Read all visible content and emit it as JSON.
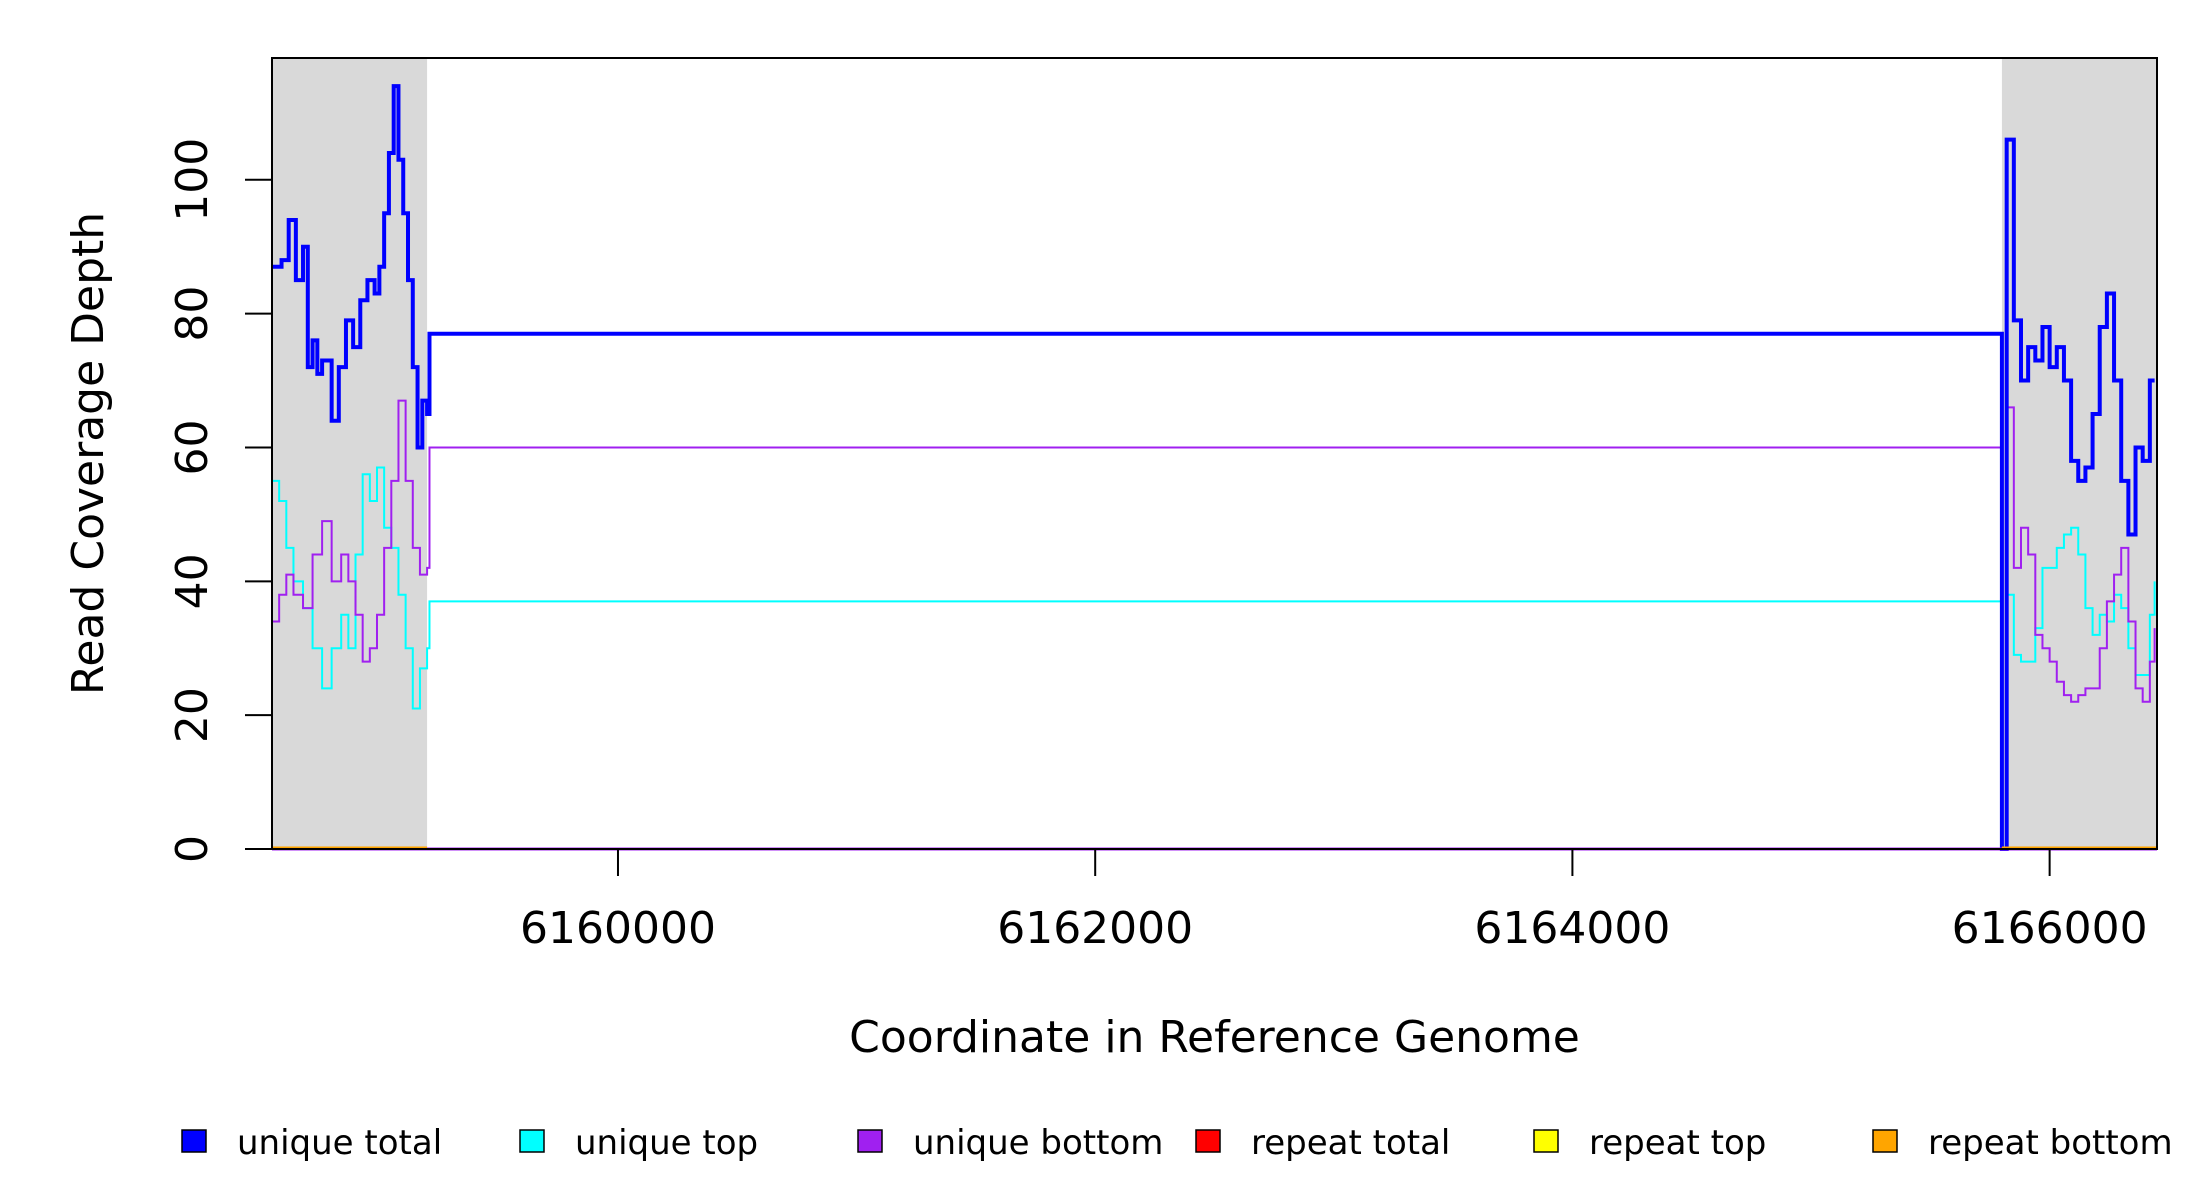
{
  "chart_data": {
    "type": "line",
    "xlabel": "Coordinate in Reference Genome",
    "ylabel": "Read Coverage Depth",
    "xlim": [
      6158550,
      6166450
    ],
    "ylim": [
      0,
      120
    ],
    "x_ticks": [
      6160000,
      6162000,
      6164000,
      6166000
    ],
    "y_ticks": [
      0,
      20,
      40,
      60,
      80,
      100
    ],
    "grid": false,
    "legend_position": "bottom",
    "shaded_regions": [
      {
        "x": [
          6158550,
          6159200
        ],
        "color": "#d9d9d9"
      },
      {
        "x": [
          6165800,
          6166450
        ],
        "color": "#d9d9d9"
      }
    ],
    "series": [
      {
        "name": "unique total",
        "color": "#0000ff",
        "x": [
          6158550,
          6158590,
          6158620,
          6158650,
          6158680,
          6158700,
          6158720,
          6158740,
          6158760,
          6158800,
          6158830,
          6158860,
          6158890,
          6158920,
          6158950,
          6158980,
          6159000,
          6159020,
          6159040,
          6159060,
          6159080,
          6159100,
          6159120,
          6159140,
          6159160,
          6159180,
          6159200,
          6159210,
          6165800,
          6165820,
          6165850,
          6165880,
          6165910,
          6165940,
          6165970,
          6166000,
          6166030,
          6166060,
          6166090,
          6166120,
          6166150,
          6166180,
          6166210,
          6166240,
          6166270,
          6166300,
          6166330,
          6166360,
          6166390,
          6166420,
          6166440
        ],
        "y": [
          87,
          88,
          94,
          85,
          90,
          72,
          76,
          71,
          73,
          64,
          72,
          79,
          75,
          82,
          85,
          83,
          87,
          95,
          104,
          114,
          103,
          95,
          85,
          72,
          60,
          67,
          65,
          77,
          0,
          106,
          79,
          70,
          75,
          73,
          78,
          72,
          75,
          70,
          58,
          55,
          57,
          65,
          78,
          83,
          70,
          55,
          47,
          60,
          58,
          70,
          70
        ],
        "extra": {
          "drop_to": [
            [
              6159210,
              0
            ],
            [
              6165800,
              0
            ]
          ]
        }
      },
      {
        "name": "unique top",
        "color": "#00ffff",
        "x": [
          6158550,
          6158580,
          6158610,
          6158640,
          6158680,
          6158720,
          6158760,
          6158800,
          6158840,
          6158870,
          6158900,
          6158930,
          6158960,
          6158990,
          6159020,
          6159050,
          6159080,
          6159110,
          6159140,
          6159170,
          6159200,
          6159210,
          6165800,
          6165820,
          6165850,
          6165880,
          6165910,
          6165940,
          6165970,
          6166000,
          6166030,
          6166060,
          6166090,
          6166120,
          6166150,
          6166180,
          6166210,
          6166240,
          6166270,
          6166300,
          6166330,
          6166360,
          6166390,
          6166420,
          6166440
        ],
        "y": [
          55,
          52,
          45,
          40,
          36,
          30,
          24,
          30,
          35,
          30,
          44,
          56,
          52,
          57,
          48,
          45,
          38,
          30,
          21,
          27,
          30,
          37,
          0,
          38,
          29,
          28,
          28,
          33,
          42,
          42,
          45,
          47,
          48,
          44,
          36,
          32,
          35,
          34,
          38,
          36,
          30,
          26,
          26,
          35,
          40
        ]
      },
      {
        "name": "unique bottom",
        "color": "#a020f0",
        "x": [
          6158550,
          6158580,
          6158610,
          6158640,
          6158680,
          6158720,
          6158760,
          6158800,
          6158840,
          6158870,
          6158900,
          6158930,
          6158960,
          6158990,
          6159020,
          6159050,
          6159080,
          6159110,
          6159140,
          6159170,
          6159200,
          6159210,
          6165800,
          6165820,
          6165850,
          6165880,
          6165910,
          6165940,
          6165970,
          6166000,
          6166030,
          6166060,
          6166090,
          6166120,
          6166150,
          6166180,
          6166210,
          6166240,
          6166270,
          6166300,
          6166330,
          6166360,
          6166390,
          6166420,
          6166440
        ],
        "y": [
          34,
          38,
          41,
          38,
          36,
          44,
          49,
          40,
          44,
          40,
          35,
          28,
          30,
          35,
          45,
          55,
          67,
          55,
          45,
          41,
          42,
          60,
          0,
          66,
          42,
          48,
          44,
          32,
          30,
          28,
          25,
          23,
          22,
          23,
          24,
          24,
          30,
          37,
          41,
          45,
          34,
          24,
          22,
          28,
          33
        ]
      },
      {
        "name": "repeat total",
        "color": "#ff0000",
        "x": [
          6158550,
          6166450
        ],
        "y": [
          0,
          0
        ]
      },
      {
        "name": "repeat top",
        "color": "#ffff00",
        "x": [
          6158550,
          6166450
        ],
        "y": [
          0,
          0
        ]
      },
      {
        "name": "repeat bottom",
        "color": "#ffa500",
        "x": [
          6158550,
          6166450
        ],
        "y": [
          0,
          0
        ]
      }
    ]
  }
}
